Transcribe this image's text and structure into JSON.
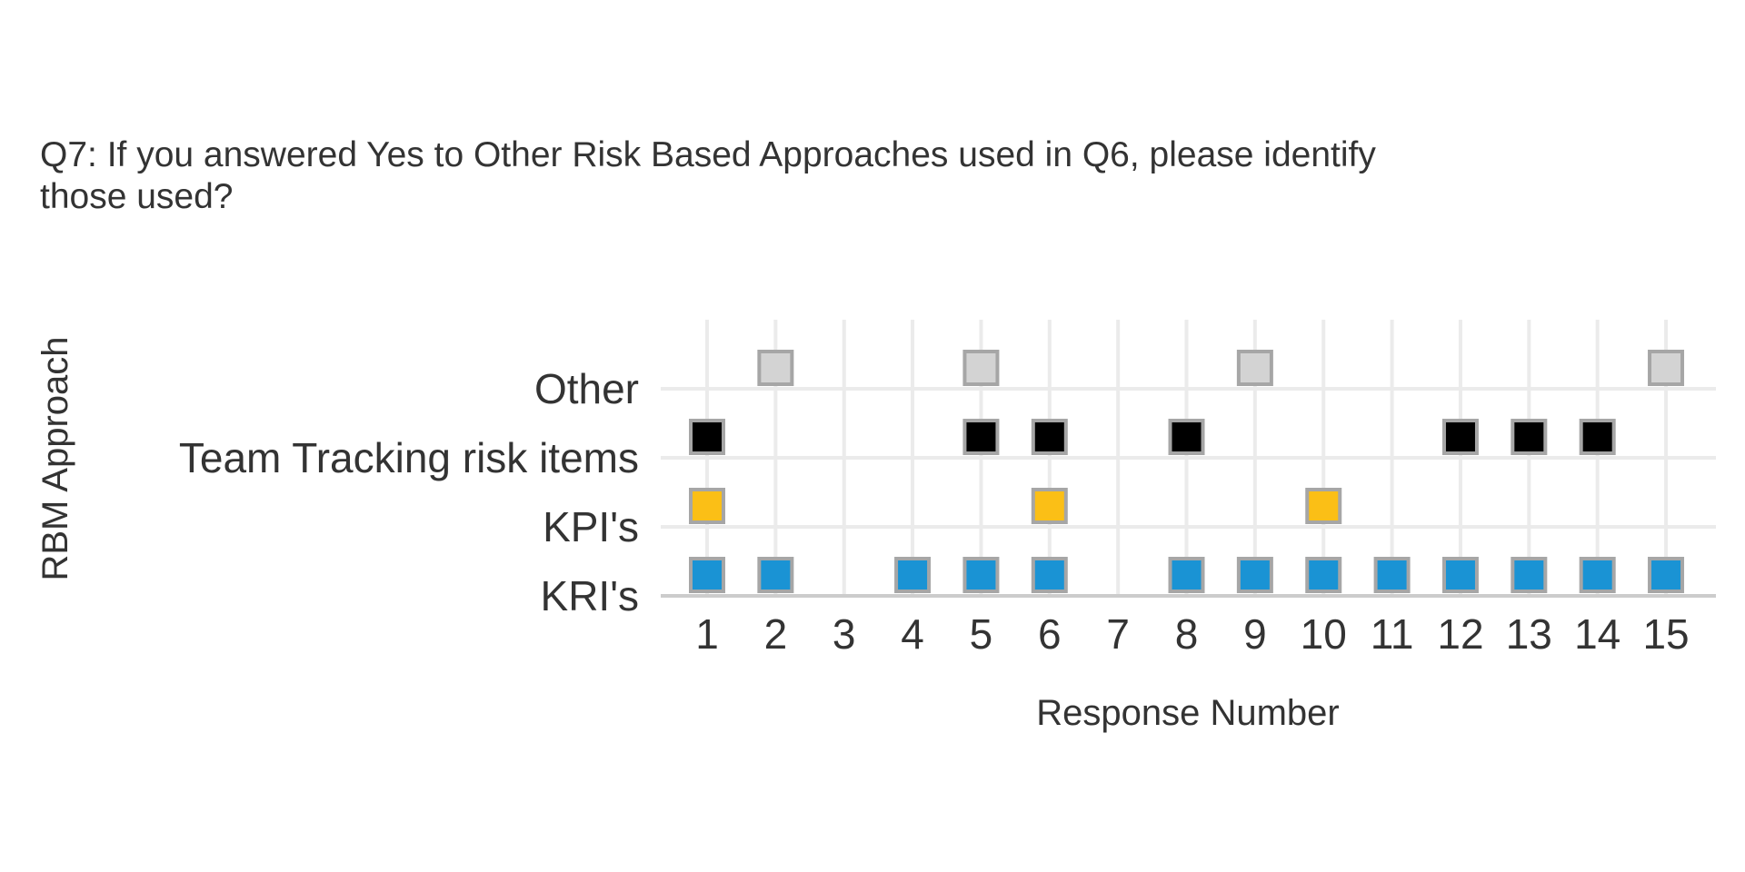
{
  "chart_data": {
    "type": "scatter",
    "title_lines": [
      "Q7: If you answered Yes to Other Risk Based Approaches used in Q6, please identify",
      "those used?"
    ],
    "xlabel": "Response Number",
    "ylabel": "RBM Approach",
    "x": [
      1,
      2,
      3,
      4,
      5,
      6,
      7,
      8,
      9,
      10,
      11,
      12,
      13,
      14,
      15
    ],
    "categories": [
      "KRI's",
      "KPI's",
      "Team Tracking risk items",
      "Other"
    ],
    "marker_shape": "square",
    "marker_border_color": "#a6a6a6",
    "series": [
      {
        "category": "KRI's",
        "color": "#1a93d4",
        "x": [
          1,
          2,
          4,
          5,
          6,
          8,
          9,
          10,
          11,
          12,
          13,
          14,
          15
        ]
      },
      {
        "category": "KPI's",
        "color": "#fbbf16",
        "x": [
          1,
          6,
          10
        ]
      },
      {
        "category": "Team Tracking risk items",
        "color": "#000000",
        "x": [
          1,
          5,
          6,
          8,
          12,
          13,
          14
        ]
      },
      {
        "category": "Other",
        "color": "#d3d3d3",
        "x": [
          2,
          5,
          9,
          15
        ]
      }
    ],
    "grid": true,
    "legend": "none"
  }
}
